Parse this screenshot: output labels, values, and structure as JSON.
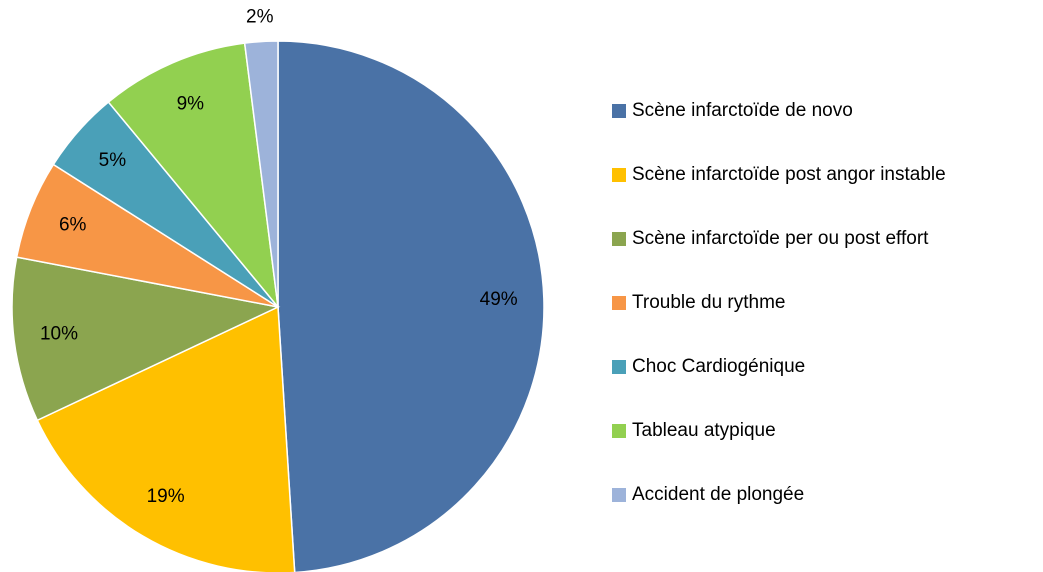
{
  "chart_data": {
    "type": "pie",
    "categories": [
      "Scène infarctoïde de novo",
      "Scène infarctoïde post angor instable",
      "Scène infarctoïde per ou post effort",
      "Trouble du rythme",
      "Choc Cardiogénique",
      "Tableau atypique",
      "Accident de plongée"
    ],
    "values": [
      49,
      19,
      10,
      6,
      5,
      9,
      2
    ],
    "value_labels": [
      "49%",
      "19%",
      "10%",
      "6%",
      "5%",
      "9%",
      "2%"
    ],
    "colors": [
      "#4a72a6",
      "#ffc000",
      "#8ba54f",
      "#f79646",
      "#4aa0b8",
      "#92d050",
      "#9db3da"
    ],
    "legend": "right"
  }
}
